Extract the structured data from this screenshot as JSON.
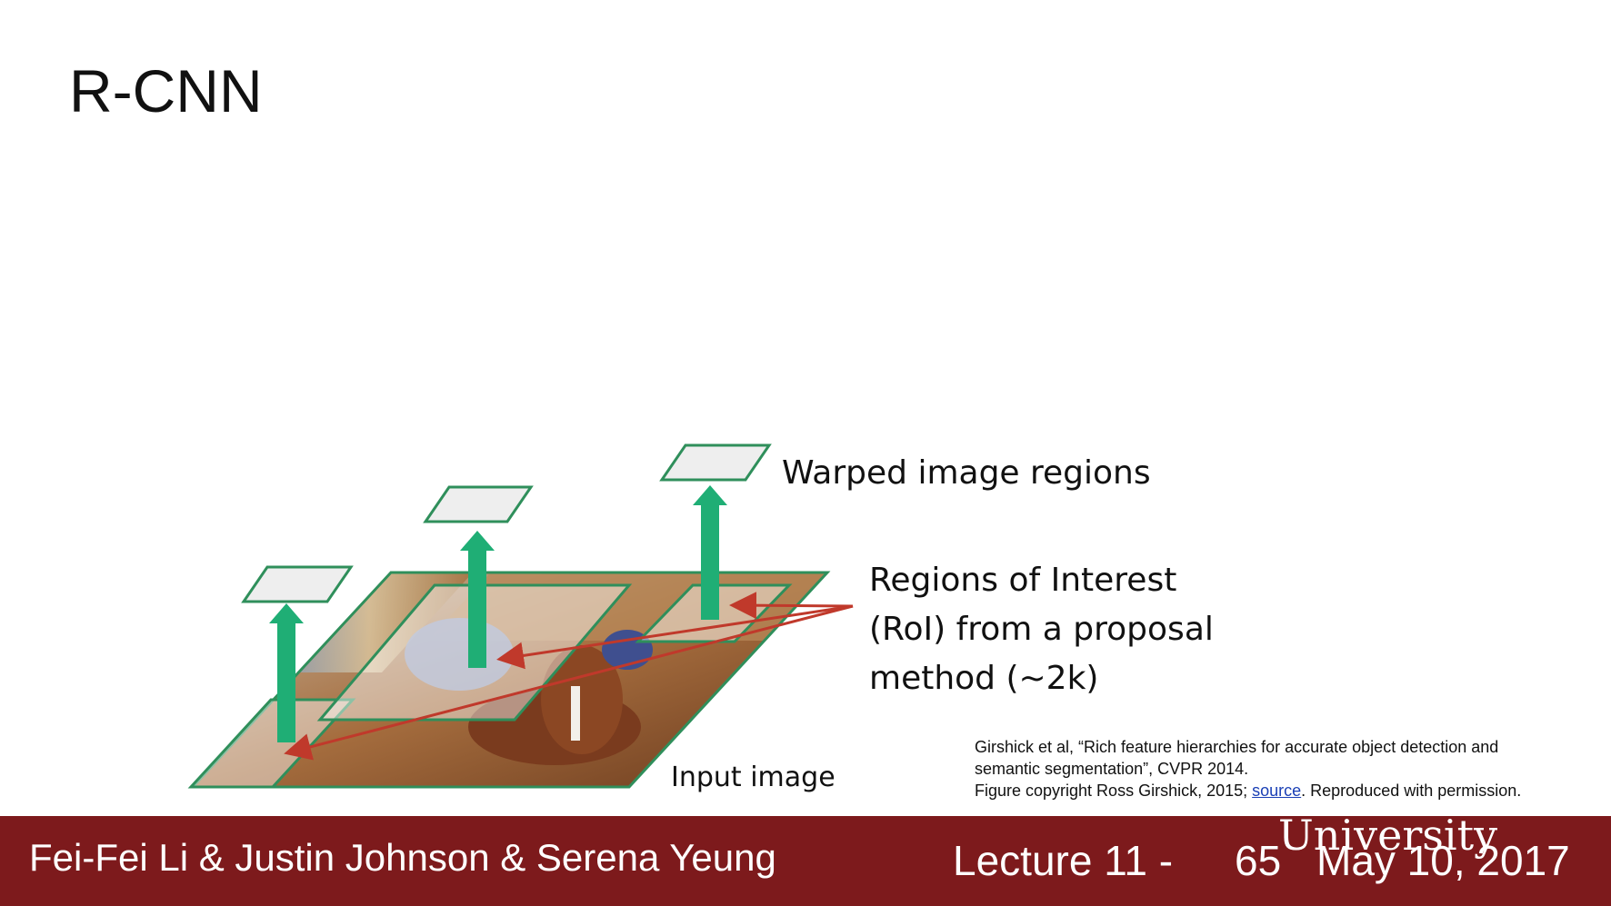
{
  "slide": {
    "title": "R-CNN"
  },
  "labels": {
    "warped": "Warped image regions",
    "roi_lines": [
      "Regions of Interest",
      "(RoI) from a proposal",
      "method (~2k)"
    ],
    "input": "Input image"
  },
  "citation": {
    "line1": "Girshick et al, “Rich feature hierarchies for accurate object detection and",
    "line2": "semantic segmentation”, CVPR 2014.",
    "line3_prefix": "Figure copyright Ross Girshick, 2015; ",
    "line3_link": "source",
    "line3_suffix": ". Reproduced with permission."
  },
  "footer": {
    "authors": "Fei-Fei Li & Justin Johnson & Serena Yeung",
    "lecture": "Lecture 11 -",
    "page": "65",
    "date": "May 10, 2017",
    "watermark": "University"
  },
  "colors": {
    "footer_bg": "#7d1a1c",
    "arrow_green": "#1fae75",
    "roi_outline": "#2f8f5b",
    "proposal_red": "#c0392b",
    "warped_fill": "#eeeeee"
  },
  "icons": {
    "up_arrow": "up-arrow-icon",
    "proposal_arrow": "red-arrow-icon"
  }
}
